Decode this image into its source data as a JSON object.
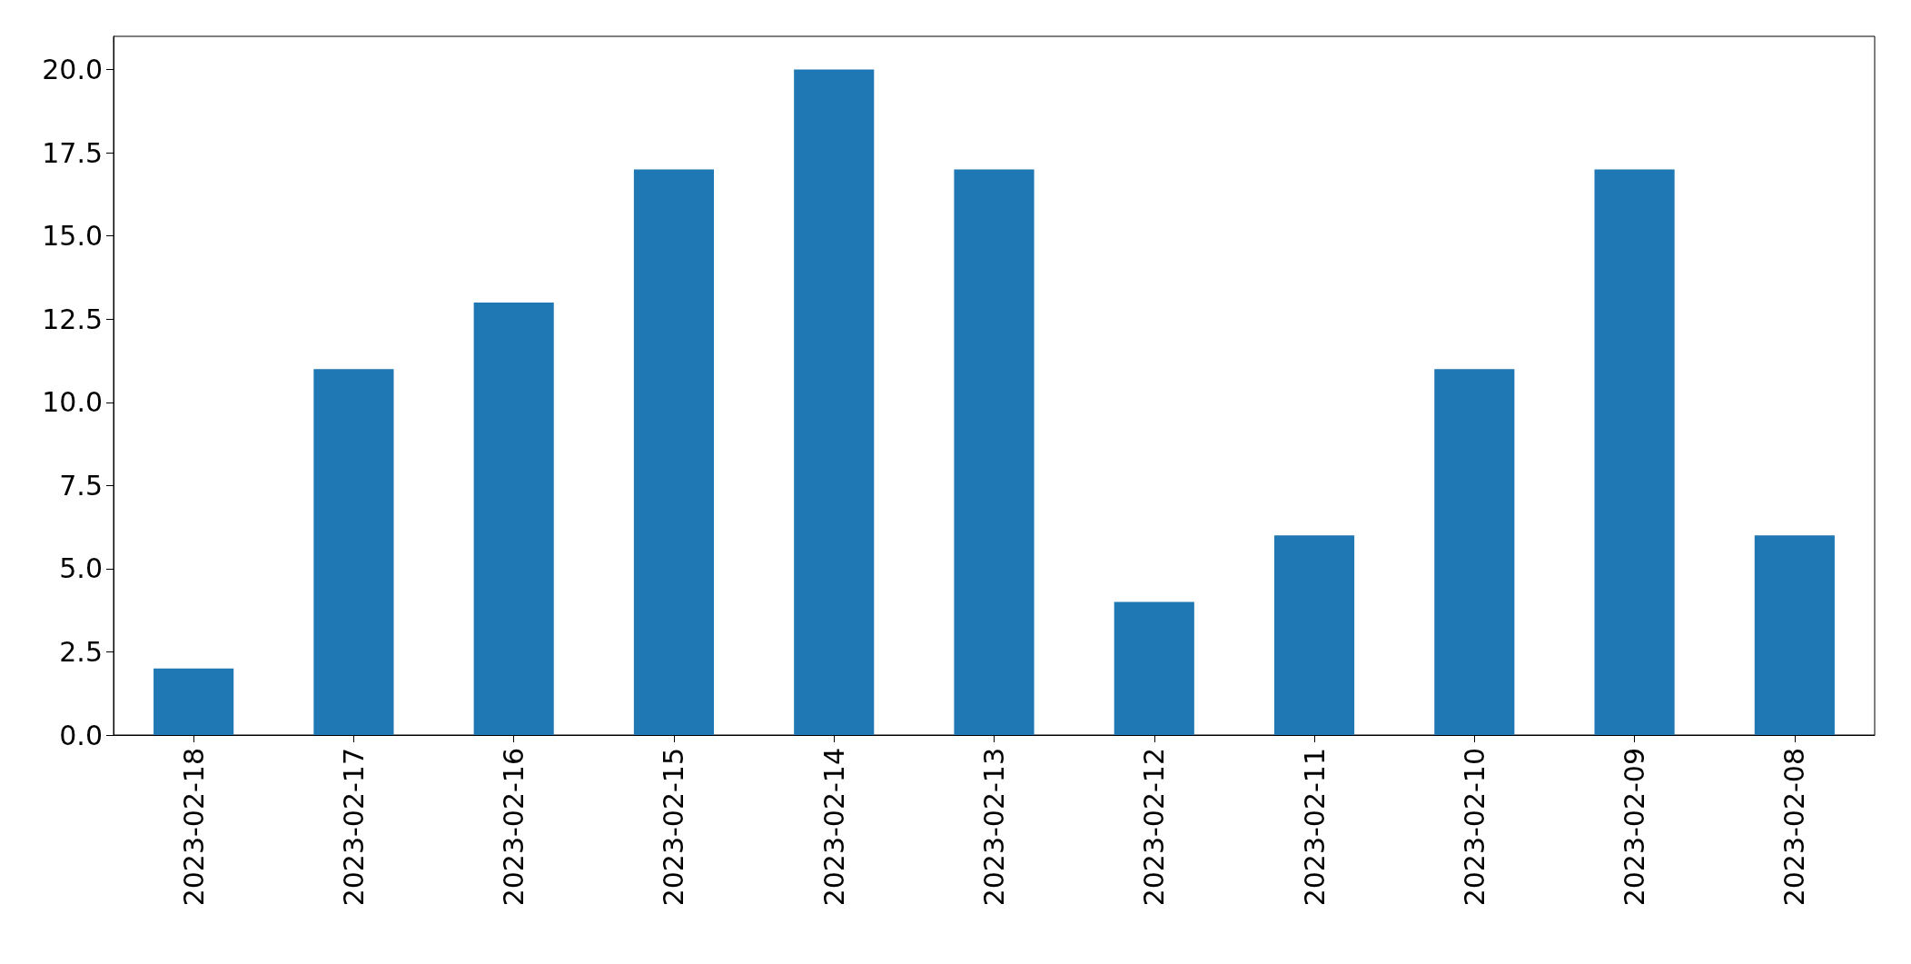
{
  "chart_data": {
    "type": "bar",
    "categories": [
      "2023-02-18",
      "2023-02-17",
      "2023-02-16",
      "2023-02-15",
      "2023-02-14",
      "2023-02-13",
      "2023-02-12",
      "2023-02-11",
      "2023-02-10",
      "2023-02-09",
      "2023-02-08"
    ],
    "values": [
      2,
      11,
      13,
      17,
      20,
      17,
      4,
      6,
      11,
      17,
      6
    ],
    "color": "#1f77b4",
    "ylim": [
      0,
      21
    ],
    "yticks": [
      {
        "value": 0,
        "label": "0.0"
      },
      {
        "value": 2.5,
        "label": "2.5"
      },
      {
        "value": 5,
        "label": "5.0"
      },
      {
        "value": 7.5,
        "label": "7.5"
      },
      {
        "value": 10,
        "label": "10.0"
      },
      {
        "value": 12.5,
        "label": "12.5"
      },
      {
        "value": 15,
        "label": "15.0"
      },
      {
        "value": 17.5,
        "label": "17.5"
      },
      {
        "value": 20,
        "label": "20.0"
      }
    ],
    "grid": false
  }
}
